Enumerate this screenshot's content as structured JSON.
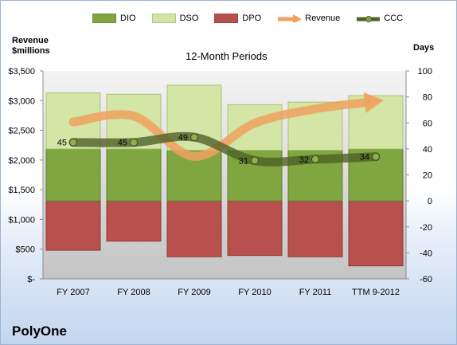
{
  "company": "PolyOne",
  "chart_data": {
    "type": "bar",
    "title": "12-Month Periods",
    "categories": [
      "FY 2007",
      "FY 2008",
      "FY 2009",
      "FY 2010",
      "FY 2011",
      "TTM 9-2012"
    ],
    "left_axis": {
      "label_line1": "Revenue",
      "label_line2": "$millions",
      "range": [
        0,
        3500
      ],
      "ticks": [
        "$-",
        "$500",
        "$1,000",
        "$1,500",
        "$2,000",
        "$2,500",
        "$3,000",
        "$3,500"
      ]
    },
    "right_axis": {
      "label": "Days",
      "range": [
        -60,
        100
      ],
      "ticks": [
        "-60",
        "-40",
        "-20",
        "0",
        "20",
        "40",
        "60",
        "80",
        "100"
      ]
    },
    "series": [
      {
        "name": "DIO",
        "type": "stacked-bar",
        "axis": "right",
        "color": "#7fa63f",
        "values": [
          40,
          40,
          39,
          39,
          39,
          40
        ]
      },
      {
        "name": "DSO",
        "type": "stacked-bar",
        "axis": "right",
        "color": "#d3e6a6",
        "values": [
          43,
          42,
          50,
          35,
          37,
          41
        ]
      },
      {
        "name": "DPO",
        "type": "negative-bar",
        "axis": "right",
        "color": "#b8504d",
        "values": [
          -38,
          -31,
          -43,
          -42,
          -43,
          -50
        ]
      },
      {
        "name": "Revenue",
        "type": "line",
        "axis": "left",
        "color": "#f0a15e",
        "values": [
          2640,
          2740,
          2060,
          2620,
          2860,
          2990
        ]
      },
      {
        "name": "CCC",
        "type": "line",
        "axis": "right",
        "color": "#4f6228",
        "values": [
          45,
          45,
          49,
          31,
          32,
          34
        ],
        "labels": [
          "45",
          "45",
          "49",
          "31",
          "32",
          "34"
        ]
      }
    ]
  }
}
